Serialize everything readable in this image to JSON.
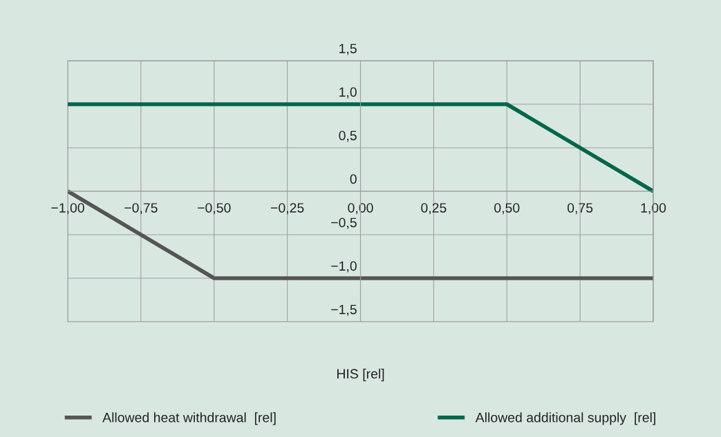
{
  "chart_data": {
    "type": "line",
    "xlabel": "HIS [rel]",
    "x": [
      -1.0,
      -0.5,
      0.5,
      1.0
    ],
    "series": [
      {
        "name": "Allowed heat withdrawal  [rel]",
        "color": "#555555",
        "values": [
          0,
          -1,
          -1,
          -1
        ]
      },
      {
        "name": "Allowed additional supply  [rel]",
        "color": "#00664a",
        "values": [
          1,
          1,
          1,
          0
        ]
      }
    ],
    "xlim": [
      -1.0,
      1.0
    ],
    "xticks": [
      {
        "value": -1.0,
        "label": "−1,00"
      },
      {
        "value": -0.75,
        "label": "−0,75"
      },
      {
        "value": -0.5,
        "label": "−0,50"
      },
      {
        "value": -0.25,
        "label": "−0,25"
      },
      {
        "value": 0.0,
        "label": "0,00"
      },
      {
        "value": 0.25,
        "label": "0,25"
      },
      {
        "value": 0.5,
        "label": "0,50"
      },
      {
        "value": 0.75,
        "label": "0,75"
      },
      {
        "value": 1.0,
        "label": "1,00"
      }
    ],
    "ylim": [
      -1.5,
      1.5
    ],
    "yticks": [
      {
        "value": -1.5,
        "label": "−1,5"
      },
      {
        "value": -1.0,
        "label": "−1,0"
      },
      {
        "value": -0.5,
        "label": "−0,5"
      },
      {
        "value": 0,
        "label": "0"
      },
      {
        "value": 0.5,
        "label": "0,5"
      },
      {
        "value": 1.0,
        "label": "1,0"
      },
      {
        "value": 1.5,
        "label": "1,5"
      }
    ],
    "grid": true,
    "legend": "bottom",
    "marker": "none",
    "line_style": "solid"
  }
}
